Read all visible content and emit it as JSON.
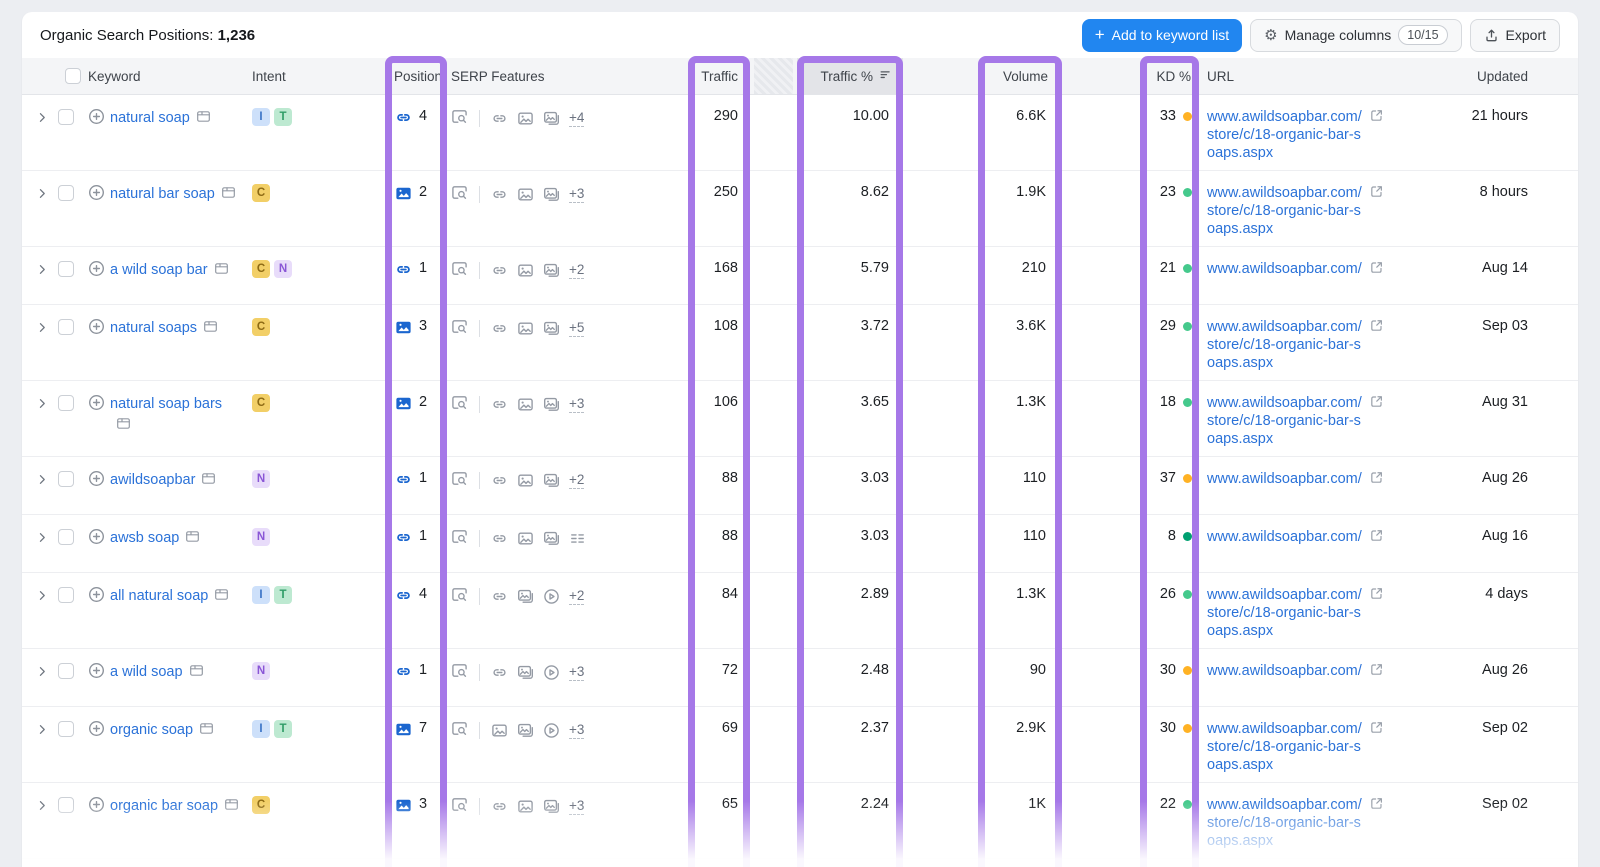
{
  "toolbar": {
    "title_label": "Organic Search Positions:",
    "title_count": "1,236",
    "add_button": "Add to keyword list",
    "manage_columns": "Manage columns",
    "manage_columns_badge": "10/15",
    "export_label": "Export"
  },
  "columns": {
    "keyword": "Keyword",
    "intent": "Intent",
    "position": "Position",
    "serp": "SERP Features",
    "traffic": "Traffic",
    "traffic_pct": "Traffic %",
    "volume": "Volume",
    "kd": "KD %",
    "url": "URL",
    "updated": "Updated"
  },
  "colors": {
    "highlight": "#a678e8",
    "accent_blue": "#2186f0",
    "link_blue": "#2b72d8"
  },
  "intent_styles": {
    "I": {
      "bg": "#cde0fa",
      "fg": "#3b74c6"
    },
    "C": {
      "bg": "#f2cf67",
      "fg": "#8d6a14"
    },
    "T": {
      "bg": "#bde9d1",
      "fg": "#2f9c67"
    },
    "N": {
      "bg": "#e8dcfa",
      "fg": "#8a56d6"
    }
  },
  "kd_colors": {
    "very-easy": "#00a071",
    "easy": "#45c98c",
    "possible": "#ffb224"
  },
  "rows": [
    {
      "keyword": "natural soap",
      "intents": [
        "I",
        "T"
      ],
      "position": {
        "icon": "link",
        "value": "4"
      },
      "serp": {
        "features": [
          "link",
          "image",
          "featured-image"
        ],
        "more": "+4"
      },
      "traffic": "290",
      "traffic_pct": "10.00",
      "volume": "6.6K",
      "kd": {
        "value": "33",
        "level": "possible"
      },
      "url": "www.awildsoapbar.com/store/c/18-organic-bar-soaps.aspx",
      "updated": "21 hours"
    },
    {
      "keyword": "natural bar soap",
      "intents": [
        "C"
      ],
      "position": {
        "icon": "image-pack",
        "value": "2"
      },
      "serp": {
        "features": [
          "link",
          "image",
          "featured-image"
        ],
        "more": "+3"
      },
      "traffic": "250",
      "traffic_pct": "8.62",
      "volume": "1.9K",
      "kd": {
        "value": "23",
        "level": "easy"
      },
      "url": "www.awildsoapbar.com/store/c/18-organic-bar-soaps.aspx",
      "updated": "8 hours"
    },
    {
      "keyword": "a wild soap bar",
      "intents": [
        "C",
        "N"
      ],
      "position": {
        "icon": "link",
        "value": "1"
      },
      "serp": {
        "features": [
          "link",
          "image",
          "featured-image"
        ],
        "more": "+2"
      },
      "traffic": "168",
      "traffic_pct": "5.79",
      "volume": "210",
      "kd": {
        "value": "21",
        "level": "easy"
      },
      "url": "www.awildsoapbar.com/",
      "updated": "Aug 14"
    },
    {
      "keyword": "natural soaps",
      "intents": [
        "C"
      ],
      "position": {
        "icon": "image-pack",
        "value": "3"
      },
      "serp": {
        "features": [
          "link",
          "image",
          "featured-image"
        ],
        "more": "+5"
      },
      "traffic": "108",
      "traffic_pct": "3.72",
      "volume": "3.6K",
      "kd": {
        "value": "29",
        "level": "easy"
      },
      "url": "www.awildsoapbar.com/store/c/18-organic-bar-soaps.aspx",
      "updated": "Sep 03"
    },
    {
      "keyword": "natural soap bars",
      "intents": [
        "C"
      ],
      "position": {
        "icon": "image-pack",
        "value": "2"
      },
      "serp": {
        "features": [
          "link",
          "image",
          "featured-image"
        ],
        "more": "+3"
      },
      "traffic": "106",
      "traffic_pct": "3.65",
      "volume": "1.3K",
      "kd": {
        "value": "18",
        "level": "easy"
      },
      "url": "www.awildsoapbar.com/store/c/18-organic-bar-soaps.aspx",
      "updated": "Aug 31"
    },
    {
      "keyword": "awildsoapbar",
      "intents": [
        "N"
      ],
      "position": {
        "icon": "link",
        "value": "1"
      },
      "serp": {
        "features": [
          "link",
          "image",
          "featured-image"
        ],
        "more": "+2"
      },
      "traffic": "88",
      "traffic_pct": "3.03",
      "volume": "110",
      "kd": {
        "value": "37",
        "level": "possible"
      },
      "url": "www.awildsoapbar.com/",
      "updated": "Aug 26"
    },
    {
      "keyword": "awsb soap",
      "intents": [
        "N"
      ],
      "position": {
        "icon": "link",
        "value": "1"
      },
      "serp": {
        "features": [
          "link",
          "image",
          "featured-image",
          "sitelinks"
        ],
        "more": ""
      },
      "traffic": "88",
      "traffic_pct": "3.03",
      "volume": "110",
      "kd": {
        "value": "8",
        "level": "very-easy"
      },
      "url": "www.awildsoapbar.com/",
      "updated": "Aug 16"
    },
    {
      "keyword": "all natural soap",
      "intents": [
        "I",
        "T"
      ],
      "position": {
        "icon": "link",
        "value": "4"
      },
      "serp": {
        "features": [
          "link",
          "featured-image",
          "video"
        ],
        "more": "+2"
      },
      "traffic": "84",
      "traffic_pct": "2.89",
      "volume": "1.3K",
      "kd": {
        "value": "26",
        "level": "easy"
      },
      "url": "www.awildsoapbar.com/store/c/18-organic-bar-soaps.aspx",
      "updated": "4 days"
    },
    {
      "keyword": "a wild soap",
      "intents": [
        "N"
      ],
      "position": {
        "icon": "link",
        "value": "1"
      },
      "serp": {
        "features": [
          "link",
          "featured-image",
          "video"
        ],
        "more": "+3"
      },
      "traffic": "72",
      "traffic_pct": "2.48",
      "volume": "90",
      "kd": {
        "value": "30",
        "level": "possible"
      },
      "url": "www.awildsoapbar.com/",
      "updated": "Aug 26"
    },
    {
      "keyword": "organic soap",
      "intents": [
        "I",
        "T"
      ],
      "position": {
        "icon": "image-pack",
        "value": "7"
      },
      "serp": {
        "features": [
          "image",
          "featured-image",
          "video"
        ],
        "more": "+3"
      },
      "traffic": "69",
      "traffic_pct": "2.37",
      "volume": "2.9K",
      "kd": {
        "value": "30",
        "level": "possible"
      },
      "url": "www.awildsoapbar.com/store/c/18-organic-bar-soaps.aspx",
      "updated": "Sep 02"
    },
    {
      "keyword": "organic bar soap",
      "intents": [
        "C"
      ],
      "position": {
        "icon": "image-pack",
        "value": "3"
      },
      "serp": {
        "features": [
          "link",
          "image",
          "featured-image"
        ],
        "more": "+3"
      },
      "traffic": "65",
      "traffic_pct": "2.24",
      "volume": "1K",
      "kd": {
        "value": "22",
        "level": "easy"
      },
      "url": "www.awildsoapbar.com/store/c/18-organic-bar-soaps.aspx",
      "updated": "Sep 02"
    }
  ]
}
